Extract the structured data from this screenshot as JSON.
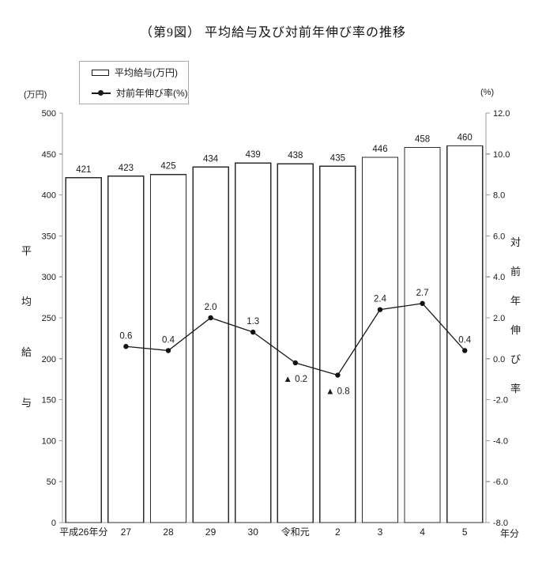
{
  "title": "（第9図） 平均給与及び対前年伸び率の推移",
  "legend": {
    "bar_label": "平均給与(万円)",
    "line_label": "対前年伸び率(%)"
  },
  "chart_data": {
    "type": "combo",
    "title": "（第9図） 平均給与及び対前年伸び率の推移",
    "grid": false,
    "legend_position": "top-left",
    "categories": [
      "平成26年分",
      "27",
      "28",
      "29",
      "30",
      "令和元",
      "2",
      "3",
      "4",
      "5"
    ],
    "x_suffix": "年分",
    "series": [
      {
        "name": "平均給与(万円)",
        "type": "bar",
        "axis": "left",
        "values": [
          421,
          423,
          425,
          434,
          439,
          438,
          435,
          446,
          458,
          460
        ],
        "labels": [
          "421",
          "423",
          "425",
          "434",
          "439",
          "438",
          "435",
          "446",
          "458",
          "460"
        ]
      },
      {
        "name": "対前年伸び率(%)",
        "type": "line",
        "axis": "right",
        "values": [
          null,
          0.6,
          0.4,
          2.0,
          1.3,
          -0.2,
          -0.8,
          2.4,
          2.7,
          0.4
        ],
        "labels": [
          null,
          "0.6",
          "0.4",
          "2.0",
          "1.3",
          "▲ 0.2",
          "▲ 0.8",
          "2.4",
          "2.7",
          "0.4"
        ]
      }
    ],
    "left_axis": {
      "unit": "(万円)",
      "title": "平均給与",
      "min": 0,
      "max": 500,
      "step": 50,
      "tick_labels": [
        "0",
        "50",
        "100",
        "150",
        "200",
        "250",
        "300",
        "350",
        "400",
        "450",
        "500"
      ]
    },
    "right_axis": {
      "unit": "(%)",
      "title": "対前年伸び率",
      "min": -8,
      "max": 12,
      "step": 2,
      "tick_labels": [
        "-8.0",
        "-6.0",
        "-4.0",
        "-2.0",
        "0.0",
        "2.0",
        "4.0",
        "6.0",
        "8.0",
        "10.0",
        "12.0"
      ]
    }
  }
}
